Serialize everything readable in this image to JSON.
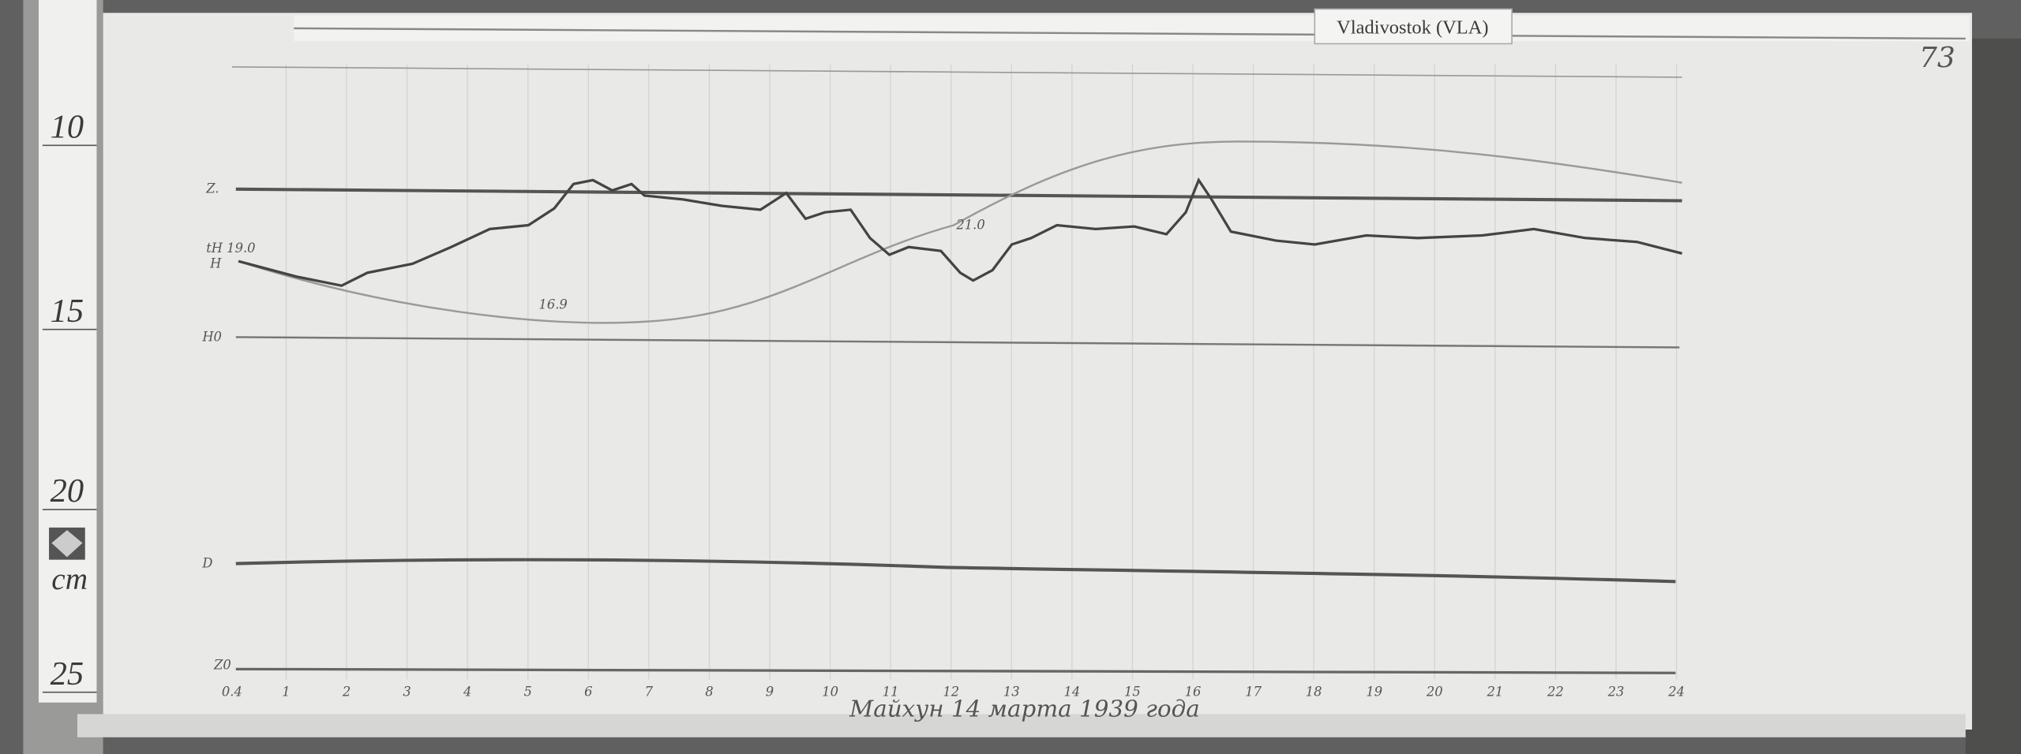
{
  "header": {
    "station": "Vladivostok (VLA)",
    "page_number": "73"
  },
  "ruler": {
    "marks": [
      "10",
      "15",
      "20",
      "25"
    ],
    "unit": "cm"
  },
  "traces": {
    "z": "Z.",
    "h_temp": "tH 19.0",
    "h": "H",
    "temp_min": "16.9",
    "temp_max": "21.0",
    "h0": "H0",
    "d": "D",
    "z0": "Z0"
  },
  "time_axis": {
    "labels": [
      "0.4",
      "1",
      "2",
      "3",
      "4",
      "5",
      "6",
      "7",
      "8",
      "9",
      "10",
      "11",
      "12",
      "13",
      "14",
      "15",
      "16",
      "17",
      "18",
      "19",
      "20",
      "21",
      "22",
      "23",
      "24"
    ]
  },
  "caption": "Майхун 14 марта 1939 года"
}
